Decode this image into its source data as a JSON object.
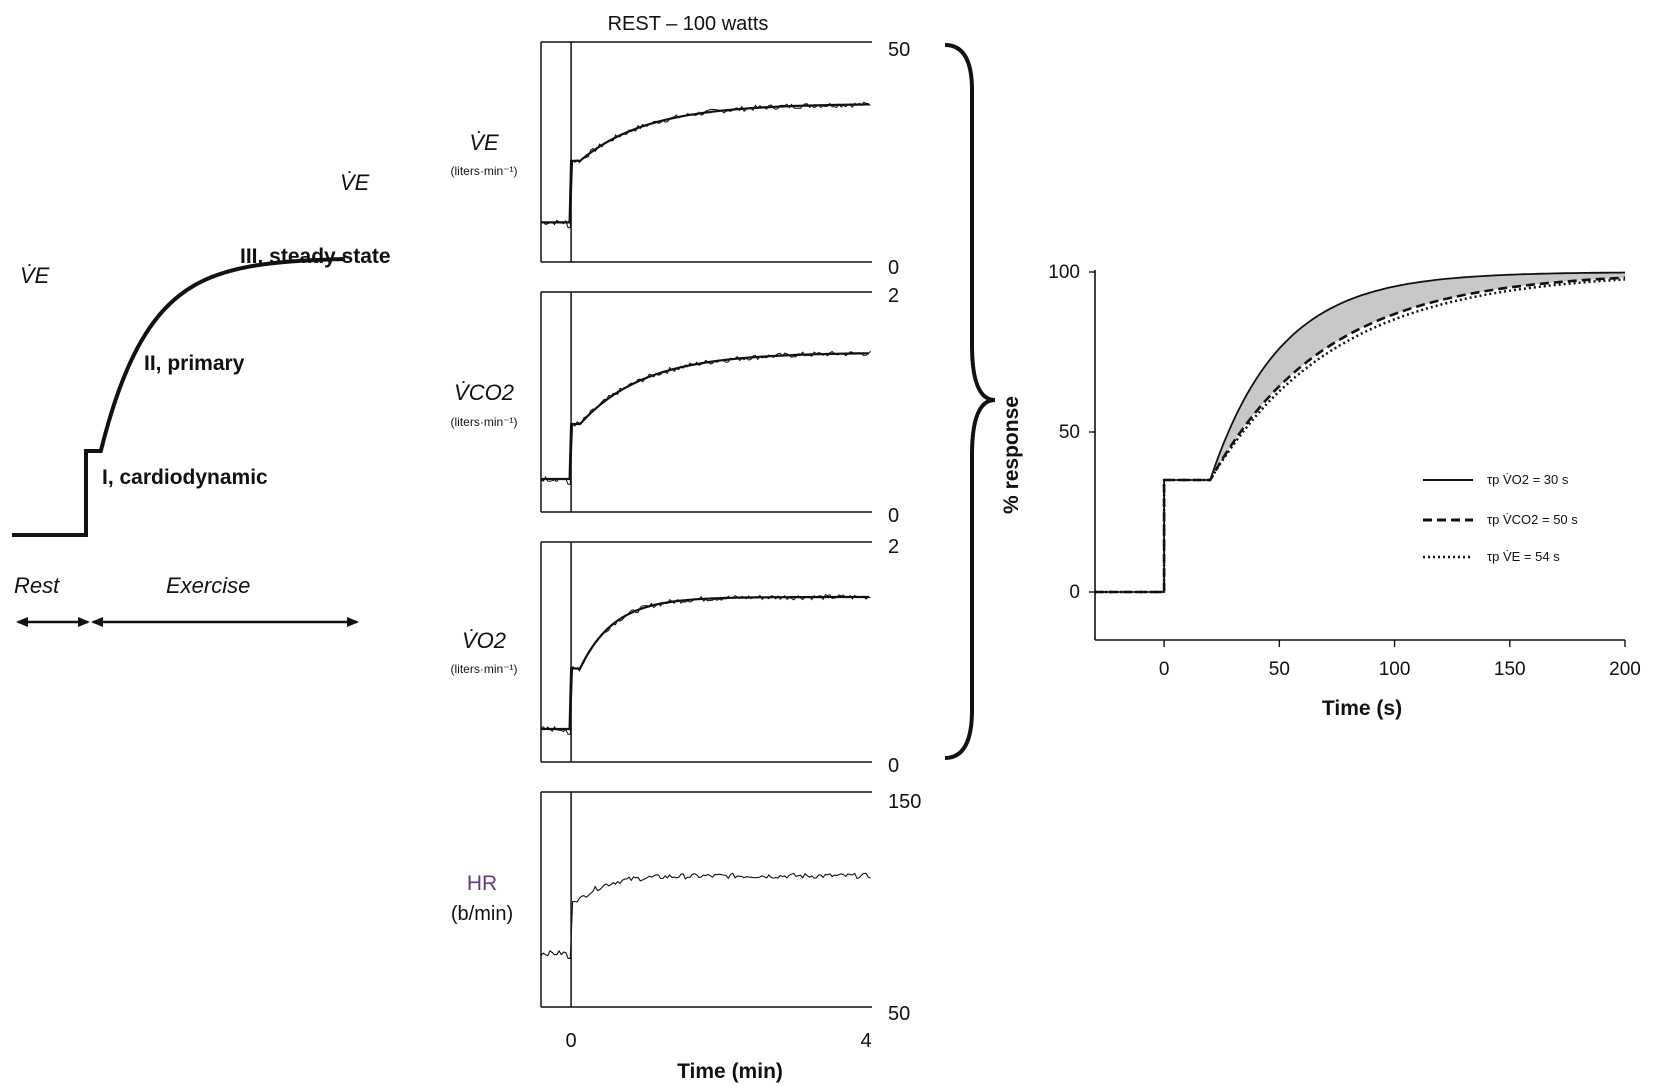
{
  "schematic": {
    "ve_left": "V̇E",
    "ve_top": "V̇E",
    "phase1": "I, cardiodynamic",
    "phase2": "II, primary",
    "phase3": "III, steady state",
    "rest": "Rest",
    "exercise": "Exercise"
  },
  "traces": {
    "title": "REST – 100 watts",
    "xlabel": "Time (min)",
    "x_ticks": [
      "0",
      "4"
    ],
    "panels": [
      {
        "label": "V̇E",
        "unit": "(liters·min⁻¹)",
        "ymax_label": "50",
        "ymin_label": "0"
      },
      {
        "label": "V̇CO2",
        "unit": "(liters·min⁻¹)",
        "ymax_label": "2",
        "ymin_label": "0"
      },
      {
        "label": "V̇O2",
        "unit": "(liters·min⁻¹)",
        "ymax_label": "2",
        "ymin_label": "0"
      },
      {
        "label": "HR",
        "unit": "(b/min)",
        "ymax_label": "150",
        "ymin_label": "50"
      }
    ]
  },
  "response": {
    "ylabel": "% response",
    "xlabel": "Time (s)",
    "yticks": [
      "0",
      "50",
      "100"
    ],
    "xticks": [
      "0",
      "50",
      "100",
      "150",
      "200"
    ],
    "legend": [
      "τp V̇O2 = 30 s",
      "τp V̇CO2 = 50 s",
      "τp V̇E = 54 s"
    ]
  },
  "chart_data": [
    {
      "type": "line",
      "panel": "schematic",
      "x": [
        -1,
        0,
        0,
        0.2,
        0.5,
        1.0,
        1.5,
        2.0,
        2.5,
        3.0,
        3.5
      ],
      "series": [
        {
          "values": [
            0,
            0,
            0.3,
            0.3,
            0.52,
            0.74,
            0.86,
            0.93,
            0.96,
            0.98,
            0.99
          ]
        }
      ],
      "annotations": [
        "I, cardiodynamic",
        "II, primary",
        "III, steady state"
      ]
    },
    {
      "type": "line",
      "panel": "traces",
      "title": "REST – 100 watts",
      "xlabel": "Time (min)",
      "xlim": [
        -0.4,
        4.0
      ],
      "series": [
        {
          "name": "V̇E",
          "unit": "liters·min⁻¹",
          "ylim": [
            0,
            50
          ],
          "rest": 9,
          "jump": 23,
          "steady": 36,
          "tau_min": 0.9
        },
        {
          "name": "V̇CO2",
          "unit": "liters·min⁻¹",
          "ylim": [
            0,
            2
          ],
          "rest": 0.3,
          "jump": 0.8,
          "steady": 1.45,
          "tau_min": 0.85
        },
        {
          "name": "V̇O2",
          "unit": "liters·min⁻¹",
          "ylim": [
            0,
            2
          ],
          "rest": 0.3,
          "jump": 0.85,
          "steady": 1.5,
          "tau_min": 0.45
        },
        {
          "name": "HR",
          "unit": "b/min",
          "ylim": [
            50,
            150
          ],
          "rest": 75,
          "jump": 100,
          "steady": 111,
          "tau_min": 0.35
        }
      ]
    },
    {
      "type": "line",
      "panel": "response",
      "xlabel": "Time (s)",
      "ylabel": "% response",
      "xlim": [
        -30,
        200
      ],
      "ylim": [
        -15,
        100
      ],
      "phase1_end_s": 20,
      "phase1_level": 35,
      "series": [
        {
          "name": "τp V̇O2 = 30 s",
          "tau_s": 30
        },
        {
          "name": "τp V̇CO2 = 50 s",
          "tau_s": 50
        },
        {
          "name": "τp V̇E = 54 s",
          "tau_s": 54
        }
      ]
    }
  ]
}
